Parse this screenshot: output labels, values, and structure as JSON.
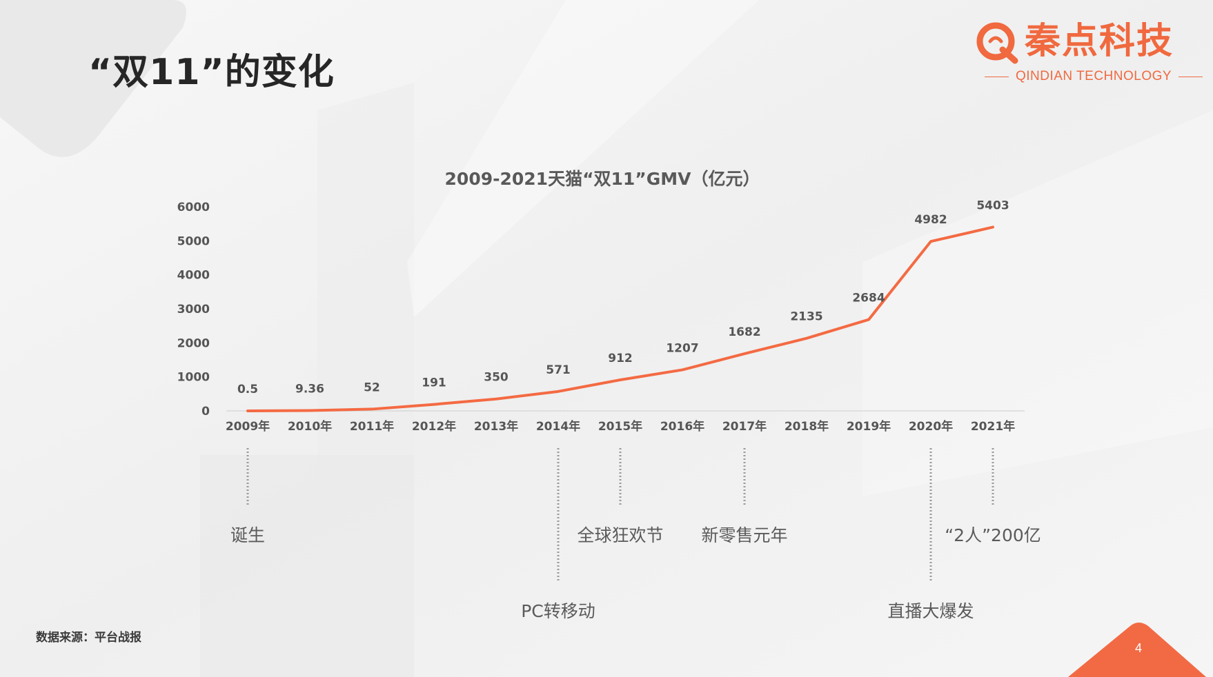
{
  "page": {
    "title": "“双11”的变化",
    "source": "数据来源：平台战报",
    "page_number": "4"
  },
  "logo": {
    "name_cn": "秦点科技",
    "name_en": "QINDIAN TECHNOLOGY"
  },
  "colors": {
    "accent": "#f0693f",
    "line": "#f46a43",
    "text_dark": "#262626",
    "axis_text": "#555555",
    "milestone_text": "#5a5a5a",
    "page_badge": "#f26a44"
  },
  "chart_data": {
    "type": "line",
    "title": "2009-2021天猫“双11”GMV（亿元）",
    "categories": [
      "2009年",
      "2010年",
      "2011年",
      "2012年",
      "2013年",
      "2014年",
      "2015年",
      "2016年",
      "2017年",
      "2018年",
      "2019年",
      "2020年",
      "2021年"
    ],
    "series": [
      {
        "values": [
          0.5,
          9.36,
          52,
          191,
          350,
          571,
          912,
          1207,
          1682,
          2135,
          2684,
          4982,
          5403
        ],
        "data_labels": [
          "0.5",
          "9.36",
          "52",
          "191",
          "350",
          "571",
          "912",
          "1207",
          "1682",
          "2135",
          "2684",
          "4982",
          "5403"
        ]
      }
    ],
    "ylim": [
      0,
      6000
    ],
    "yticks": [
      "0",
      "1000",
      "2000",
      "3000",
      "4000",
      "5000",
      "6000"
    ],
    "grid": false,
    "legend": "none",
    "annotations": [
      {
        "category": "2009年",
        "text": "诞生",
        "tier": "upper"
      },
      {
        "category": "2014年",
        "text": "PC转移动",
        "tier": "lower"
      },
      {
        "category": "2015年",
        "text": "全球狂欢节",
        "tier": "upper"
      },
      {
        "category": "2017年",
        "text": "新零售元年",
        "tier": "upper"
      },
      {
        "category": "2020年",
        "text": "直播大爆发",
        "tier": "lower"
      },
      {
        "category": "2021年",
        "text": "“2人”200亿",
        "tier": "upper"
      }
    ]
  }
}
